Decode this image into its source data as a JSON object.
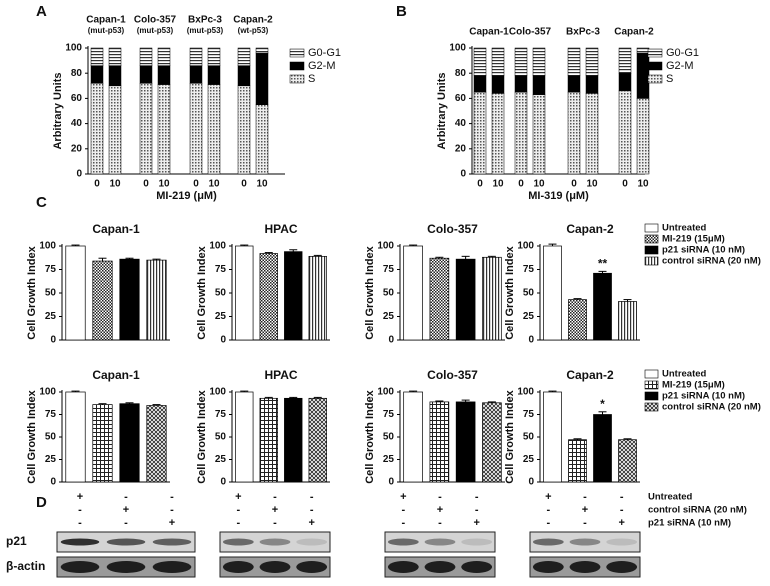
{
  "panel_labels": [
    "A",
    "B",
    "C",
    "D"
  ],
  "chart_data": [
    {
      "type": "stacked_bar",
      "ylabel": "Arbitrary Units",
      "xlabel": "MI-219 (μM)",
      "groups": [
        "Capan-1",
        "Colo-357",
        "BxPc-3",
        "Capan-2"
      ],
      "group_notes": [
        "(mut-p53)",
        "(mut-p53)",
        "(mut-p53)",
        "(wt-p53)"
      ],
      "doses": [
        0,
        10
      ],
      "ylim": [
        0,
        100
      ],
      "yticks": [
        0,
        20,
        40,
        60,
        80,
        100
      ],
      "series": [
        {
          "name": "G0-G1",
          "values": [
            14,
            14,
            14,
            14,
            14,
            14,
            14,
            4
          ]
        },
        {
          "name": "G2-M",
          "values": [
            14,
            16,
            14,
            15,
            14,
            15,
            16,
            41
          ]
        },
        {
          "name": "S",
          "values": [
            72,
            70,
            72,
            71,
            72,
            71,
            70,
            55
          ]
        }
      ]
    },
    {
      "type": "stacked_bar",
      "ylabel": "Arbitrary Units",
      "xlabel": "MI-319 (μM)",
      "groups": [
        "Capan-1",
        "Colo-357",
        "BxPc-3",
        "Capan-2"
      ],
      "doses": [
        0,
        10
      ],
      "ylim": [
        0,
        100
      ],
      "yticks": [
        0,
        20,
        40,
        60,
        80,
        100
      ],
      "series": [
        {
          "name": "G0-G1",
          "values": [
            22,
            22,
            22,
            22,
            22,
            22,
            20,
            4
          ]
        },
        {
          "name": "G2-M",
          "values": [
            13,
            14,
            13,
            15,
            13,
            14,
            14,
            36
          ]
        },
        {
          "name": "S",
          "values": [
            65,
            64,
            65,
            63,
            65,
            64,
            66,
            60
          ]
        }
      ]
    },
    {
      "type": "bar",
      "title": "Capan-1",
      "ylabel": "Cell Growth Index",
      "ylim": [
        0,
        100
      ],
      "yticks": [
        0,
        25,
        50,
        75,
        100
      ],
      "values": [
        100,
        84,
        86,
        85
      ],
      "errors": [
        1,
        3,
        1,
        1
      ]
    },
    {
      "type": "bar",
      "title": "HPAC",
      "ylabel": "Cell Growth Index",
      "ylim": [
        0,
        100
      ],
      "yticks": [
        0,
        25,
        50,
        75,
        100
      ],
      "values": [
        100,
        92,
        94,
        89
      ],
      "errors": [
        1,
        1,
        2,
        1
      ]
    },
    {
      "type": "bar",
      "title": "Colo-357",
      "ylabel": "Cell Growth Index",
      "ylim": [
        0,
        100
      ],
      "yticks": [
        0,
        25,
        50,
        75,
        100
      ],
      "values": [
        100,
        87,
        86,
        88
      ],
      "errors": [
        1,
        1,
        3,
        1
      ]
    },
    {
      "type": "bar",
      "title": "Capan-2",
      "ylabel": "Cell Growth Index",
      "ylim": [
        0,
        100
      ],
      "yticks": [
        0,
        25,
        50,
        75,
        100
      ],
      "values": [
        100,
        43,
        71,
        41
      ],
      "errors": [
        2,
        1,
        2,
        2
      ],
      "annotations": [
        null,
        null,
        "**",
        null
      ],
      "legend": [
        "Untreated",
        "MI-219 (15μM)",
        "p21 siRNA (10 nM)",
        "control siRNA (20 nM)"
      ]
    },
    {
      "type": "bar",
      "title": "Capan-1",
      "ylabel": "Cell Growth Index",
      "ylim": [
        0,
        100
      ],
      "yticks": [
        0,
        25,
        50,
        75,
        100
      ],
      "values": [
        100,
        86,
        87,
        85
      ],
      "errors": [
        1,
        1,
        1,
        1
      ]
    },
    {
      "type": "bar",
      "title": "HPAC",
      "ylabel": "Cell Growth Index",
      "ylim": [
        0,
        100
      ],
      "yticks": [
        0,
        25,
        50,
        75,
        100
      ],
      "values": [
        100,
        93,
        93,
        93
      ],
      "errors": [
        1,
        1,
        1,
        1
      ]
    },
    {
      "type": "bar",
      "title": "Colo-357",
      "ylabel": "Cell Growth Index",
      "ylim": [
        0,
        100
      ],
      "yticks": [
        0,
        25,
        50,
        75,
        100
      ],
      "values": [
        100,
        89,
        89,
        88
      ],
      "errors": [
        1,
        1,
        2,
        1
      ]
    },
    {
      "type": "bar",
      "title": "Capan-2",
      "ylabel": "Cell Growth Index",
      "ylim": [
        0,
        100
      ],
      "yticks": [
        0,
        25,
        50,
        75,
        100
      ],
      "values": [
        100,
        47,
        75,
        47
      ],
      "errors": [
        1,
        1,
        3,
        1
      ],
      "annotations": [
        null,
        null,
        "*",
        null
      ],
      "legend": [
        "Untreated",
        "MI-219 (15μM)",
        "p21 siRNA (10 nM)",
        "control siRNA (20 nM)"
      ]
    }
  ],
  "western_blot": {
    "conditions": [
      "Untreated",
      "control siRNA (20 nM)",
      "p21 siRNA (10 nM)"
    ],
    "signs": [
      [
        "+",
        "-",
        "-"
      ],
      [
        "-",
        "+",
        "-"
      ],
      [
        "-",
        "-",
        "+"
      ]
    ],
    "bands": [
      "p21",
      "β-actin"
    ]
  }
}
